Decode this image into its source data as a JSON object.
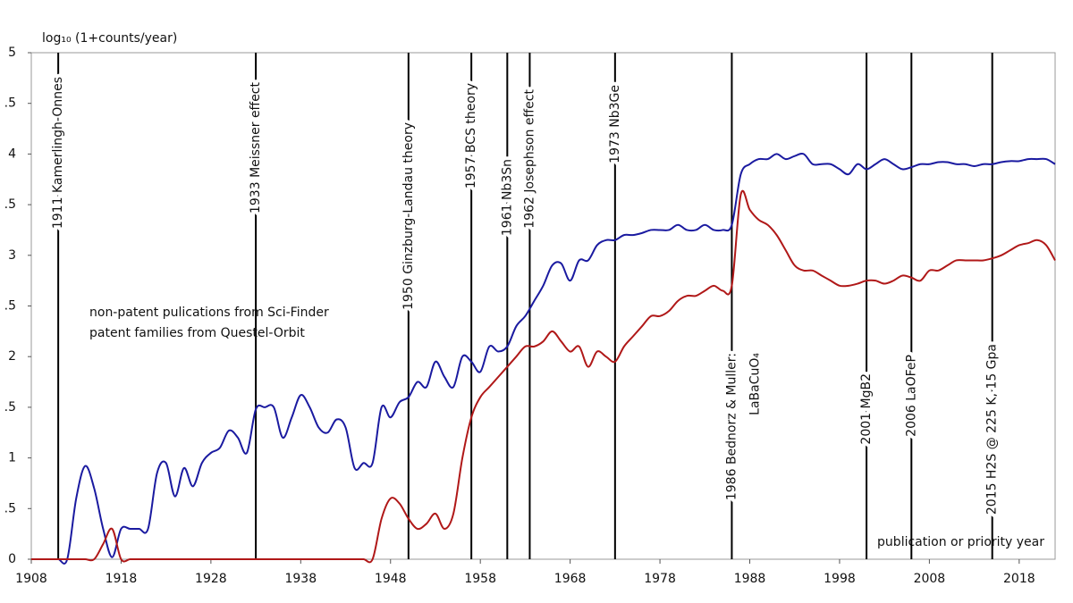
{
  "chart_data": {
    "type": "line",
    "y_label": "log₁₀ (1+counts/year)",
    "x_label": "publication or priority year",
    "x": [
      1908,
      1909,
      1910,
      1911,
      1912,
      1913,
      1914,
      1915,
      1916,
      1917,
      1918,
      1919,
      1920,
      1921,
      1922,
      1923,
      1924,
      1925,
      1926,
      1927,
      1928,
      1929,
      1930,
      1931,
      1932,
      1933,
      1934,
      1935,
      1936,
      1937,
      1938,
      1939,
      1940,
      1941,
      1942,
      1943,
      1944,
      1945,
      1946,
      1947,
      1948,
      1949,
      1950,
      1951,
      1952,
      1953,
      1954,
      1955,
      1956,
      1957,
      1958,
      1959,
      1960,
      1961,
      1962,
      1963,
      1964,
      1965,
      1966,
      1967,
      1968,
      1969,
      1970,
      1971,
      1972,
      1973,
      1974,
      1975,
      1976,
      1977,
      1978,
      1979,
      1980,
      1981,
      1982,
      1983,
      1984,
      1985,
      1986,
      1987,
      1988,
      1989,
      1990,
      1991,
      1992,
      1993,
      1994,
      1995,
      1996,
      1997,
      1998,
      1999,
      2000,
      2001,
      2002,
      2003,
      2004,
      2005,
      2006,
      2007,
      2008,
      2009,
      2010,
      2011,
      2012,
      2013,
      2014,
      2015,
      2016,
      2017,
      2018,
      2019,
      2020,
      2021,
      2022
    ],
    "series": [
      {
        "name": "non-patent pulications from Sci-Finder",
        "color": "#1a1aa0",
        "values": [
          0,
          0,
          0,
          0,
          0,
          0.6,
          0.92,
          0.7,
          0.3,
          0.02,
          0.3,
          0.3,
          0.3,
          0.3,
          0.85,
          0.95,
          0.62,
          0.9,
          0.72,
          0.95,
          1.05,
          1.1,
          1.27,
          1.2,
          1.05,
          1.48,
          1.5,
          1.5,
          1.2,
          1.4,
          1.62,
          1.5,
          1.3,
          1.25,
          1.38,
          1.3,
          0.9,
          0.95,
          0.95,
          1.5,
          1.4,
          1.55,
          1.6,
          1.75,
          1.7,
          1.95,
          1.8,
          1.7,
          2.0,
          1.95,
          1.85,
          2.1,
          2.05,
          2.1,
          2.3,
          2.4,
          2.55,
          2.7,
          2.9,
          2.92,
          2.75,
          2.95,
          2.95,
          3.1,
          3.15,
          3.15,
          3.2,
          3.2,
          3.22,
          3.25,
          3.25,
          3.25,
          3.3,
          3.25,
          3.25,
          3.3,
          3.25,
          3.25,
          3.3,
          3.8,
          3.9,
          3.95,
          3.95,
          4.0,
          3.95,
          3.98,
          4.0,
          3.9,
          3.9,
          3.9,
          3.85,
          3.8,
          3.9,
          3.85,
          3.9,
          3.95,
          3.9,
          3.85,
          3.87,
          3.9,
          3.9,
          3.92,
          3.92,
          3.9,
          3.9,
          3.88,
          3.9,
          3.9,
          3.92,
          3.93,
          3.93,
          3.95,
          3.95,
          3.95,
          3.9
        ]
      },
      {
        "name": "patent families from Questel-Orbit",
        "color": "#b01818",
        "values": [
          0,
          0,
          0,
          0,
          0,
          0,
          0,
          0,
          0.15,
          0.3,
          0,
          0,
          0,
          0,
          0,
          0,
          0,
          0,
          0,
          0,
          0,
          0,
          0,
          0,
          0,
          0,
          0,
          0,
          0,
          0,
          0,
          0,
          0,
          0,
          0,
          0,
          0,
          0,
          0,
          0.4,
          0.6,
          0.55,
          0.4,
          0.3,
          0.35,
          0.45,
          0.3,
          0.45,
          1.0,
          1.4,
          1.6,
          1.7,
          1.8,
          1.9,
          2.0,
          2.1,
          2.1,
          2.15,
          2.25,
          2.15,
          2.05,
          2.1,
          1.9,
          2.05,
          2.0,
          1.95,
          2.1,
          2.2,
          2.3,
          2.4,
          2.4,
          2.45,
          2.55,
          2.6,
          2.6,
          2.65,
          2.7,
          2.65,
          2.7,
          3.6,
          3.45,
          3.35,
          3.3,
          3.2,
          3.05,
          2.9,
          2.85,
          2.85,
          2.8,
          2.75,
          2.7,
          2.7,
          2.72,
          2.75,
          2.75,
          2.72,
          2.75,
          2.8,
          2.78,
          2.75,
          2.85,
          2.85,
          2.9,
          2.95,
          2.95,
          2.95,
          2.95,
          2.97,
          3.0,
          3.05,
          3.1,
          3.12,
          3.15,
          3.1,
          2.95
        ]
      }
    ],
    "xlim": [
      1908,
      2022
    ],
    "xticks": [
      1908,
      1918,
      1928,
      1938,
      1948,
      1958,
      1968,
      1978,
      1988,
      1998,
      2008,
      2018
    ],
    "ylim": [
      0,
      5
    ],
    "yticks": [
      0,
      {
        "value": 0.5,
        "label": ".5"
      },
      1,
      {
        "value": 1.5,
        "label": ".5"
      },
      2,
      {
        "value": 2.5,
        "label": ".5"
      },
      3,
      {
        "value": 3.5,
        "label": ".5"
      },
      4,
      {
        "value": 4.5,
        "label": ".5"
      },
      5
    ],
    "annotations": [
      {
        "x": 1911,
        "label": [
          "1911 Kamerlingh-Onnes"
        ]
      },
      {
        "x": 1933,
        "label": [
          "1933 Meissner effect"
        ]
      },
      {
        "x": 1950,
        "label": [
          "1950 Ginzburg-Landau theory"
        ]
      },
      {
        "x": 1957,
        "label": [
          "1957 BCS theory"
        ]
      },
      {
        "x": 1961,
        "label": [
          "1961 Nb3Sn"
        ]
      },
      {
        "x": 1963.5,
        "label": [
          "1962 Josephson effect"
        ]
      },
      {
        "x": 1973,
        "label": [
          "1973 Nb3Ge"
        ]
      },
      {
        "x": 1986,
        "label": [
          "1986 Bednorz &  Muller:",
          "LaBaCuO₄"
        ]
      },
      {
        "x": 2001,
        "label": [
          "2001 MgB2"
        ]
      },
      {
        "x": 2006,
        "label": [
          "2006 LaOFeP"
        ]
      },
      {
        "x": 2015,
        "label": [
          "2015 H2S @ 225 K, 15 Gpa"
        ]
      }
    ]
  }
}
